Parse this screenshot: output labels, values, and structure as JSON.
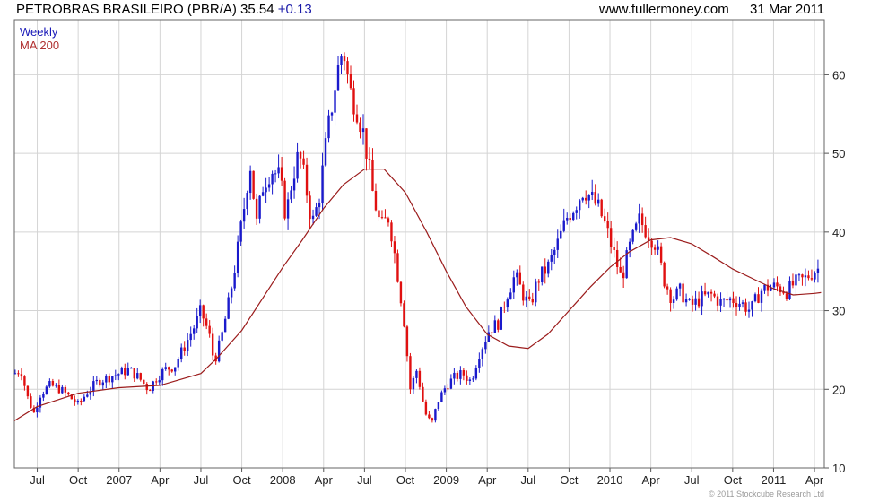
{
  "header": {
    "title_main": "PETROBRAS BRASILEIRO (PBR/A) 35.54",
    "title_change": "+0.13",
    "site": "www.fullermoney.com",
    "date": "31 Mar 2011"
  },
  "legend": {
    "weekly": "Weekly",
    "ma": "MA 200"
  },
  "copyright": "© 2011 Stockcube Research Ltd",
  "colors": {
    "up": "#1a1acc",
    "down": "#e01010",
    "ma": "#9b1c1c",
    "grid": "#d4d4d4"
  },
  "chart_data": {
    "type": "candlestick",
    "x_axis": {
      "range": [
        2006.36,
        2011.31
      ],
      "ticks": [
        {
          "label": "Jul",
          "x": 2006.5
        },
        {
          "label": "Oct",
          "x": 2006.75
        },
        {
          "label": "2007",
          "x": 2007.0
        },
        {
          "label": "Apr",
          "x": 2007.25
        },
        {
          "label": "Jul",
          "x": 2007.5
        },
        {
          "label": "Oct",
          "x": 2007.75
        },
        {
          "label": "2008",
          "x": 2008.0
        },
        {
          "label": "Apr",
          "x": 2008.25
        },
        {
          "label": "Jul",
          "x": 2008.5
        },
        {
          "label": "Oct",
          "x": 2008.75
        },
        {
          "label": "2009",
          "x": 2009.0
        },
        {
          "label": "Apr",
          "x": 2009.25
        },
        {
          "label": "Jul",
          "x": 2009.5
        },
        {
          "label": "Oct",
          "x": 2009.75
        },
        {
          "label": "2010",
          "x": 2010.0
        },
        {
          "label": "Apr",
          "x": 2010.25
        },
        {
          "label": "Jul",
          "x": 2010.5
        },
        {
          "label": "Oct",
          "x": 2010.75
        },
        {
          "label": "2011",
          "x": 2011.0
        },
        {
          "label": "Apr",
          "x": 2011.25
        }
      ]
    },
    "y_axis": {
      "range": [
        10,
        67
      ],
      "ticks": [
        10,
        20,
        30,
        40,
        50,
        60
      ],
      "side": "right"
    },
    "grid": true,
    "price_anchors": [
      [
        2006.36,
        22.0
      ],
      [
        2006.4,
        22.5
      ],
      [
        2006.44,
        19.0
      ],
      [
        2006.48,
        17.0
      ],
      [
        2006.52,
        19.5
      ],
      [
        2006.58,
        20.5
      ],
      [
        2006.64,
        20.0
      ],
      [
        2006.7,
        19.0
      ],
      [
        2006.75,
        18.0
      ],
      [
        2006.8,
        19.5
      ],
      [
        2006.87,
        21.0
      ],
      [
        2006.93,
        21.5
      ],
      [
        2007.0,
        22.0
      ],
      [
        2007.06,
        22.5
      ],
      [
        2007.12,
        21.5
      ],
      [
        2007.18,
        20.0
      ],
      [
        2007.23,
        21.5
      ],
      [
        2007.28,
        22.5
      ],
      [
        2007.34,
        23.0
      ],
      [
        2007.4,
        25.5
      ],
      [
        2007.46,
        28.0
      ],
      [
        2007.5,
        30.0
      ],
      [
        2007.55,
        27.0
      ],
      [
        2007.58,
        23.5
      ],
      [
        2007.62,
        26.0
      ],
      [
        2007.67,
        31.0
      ],
      [
        2007.72,
        37.0
      ],
      [
        2007.77,
        44.0
      ],
      [
        2007.8,
        49.0
      ],
      [
        2007.84,
        41.0
      ],
      [
        2007.88,
        46.0
      ],
      [
        2007.93,
        48.0
      ],
      [
        2007.98,
        47.0
      ],
      [
        2008.02,
        42.0
      ],
      [
        2008.06,
        47.0
      ],
      [
        2008.1,
        50.0
      ],
      [
        2008.14,
        46.0
      ],
      [
        2008.18,
        41.0
      ],
      [
        2008.22,
        44.0
      ],
      [
        2008.27,
        52.0
      ],
      [
        2008.33,
        60.0
      ],
      [
        2008.37,
        63.5
      ],
      [
        2008.41,
        58.0
      ],
      [
        2008.45,
        56.0
      ],
      [
        2008.5,
        52.0
      ],
      [
        2008.55,
        45.0
      ],
      [
        2008.6,
        40.5
      ],
      [
        2008.65,
        42.0
      ],
      [
        2008.7,
        35.0
      ],
      [
        2008.74,
        29.0
      ],
      [
        2008.78,
        20.0
      ],
      [
        2008.82,
        22.5
      ],
      [
        2008.87,
        17.0
      ],
      [
        2008.91,
        15.5
      ],
      [
        2008.95,
        18.5
      ],
      [
        2009.0,
        20.5
      ],
      [
        2009.05,
        21.5
      ],
      [
        2009.1,
        22.0
      ],
      [
        2009.15,
        21.0
      ],
      [
        2009.2,
        24.5
      ],
      [
        2009.26,
        27.5
      ],
      [
        2009.32,
        28.5
      ],
      [
        2009.37,
        32.0
      ],
      [
        2009.42,
        34.5
      ],
      [
        2009.47,
        32.0
      ],
      [
        2009.51,
        30.5
      ],
      [
        2009.56,
        34.0
      ],
      [
        2009.62,
        35.5
      ],
      [
        2009.68,
        38.5
      ],
      [
        2009.74,
        42.0
      ],
      [
        2009.79,
        43.5
      ],
      [
        2009.84,
        45.5
      ],
      [
        2009.88,
        44.5
      ],
      [
        2009.93,
        43.0
      ],
      [
        2009.97,
        41.0
      ],
      [
        2010.02,
        37.5
      ],
      [
        2010.07,
        34.0
      ],
      [
        2010.12,
        38.0
      ],
      [
        2010.18,
        41.5
      ],
      [
        2010.23,
        40.0
      ],
      [
        2010.28,
        38.5
      ],
      [
        2010.33,
        34.0
      ],
      [
        2010.38,
        31.5
      ],
      [
        2010.43,
        32.5
      ],
      [
        2010.49,
        30.5
      ],
      [
        2010.55,
        31.5
      ],
      [
        2010.62,
        32.0
      ],
      [
        2010.68,
        31.0
      ],
      [
        2010.74,
        31.5
      ],
      [
        2010.8,
        31.0
      ],
      [
        2010.86,
        30.0
      ],
      [
        2010.92,
        32.5
      ],
      [
        2010.97,
        33.0
      ],
      [
        2011.03,
        33.0
      ],
      [
        2011.08,
        32.5
      ],
      [
        2011.13,
        33.5
      ],
      [
        2011.19,
        34.0
      ],
      [
        2011.24,
        35.0
      ],
      [
        2011.29,
        35.5
      ]
    ],
    "ma200": [
      [
        2006.36,
        16.0
      ],
      [
        2006.5,
        17.8
      ],
      [
        2006.75,
        19.5
      ],
      [
        2007.0,
        20.2
      ],
      [
        2007.25,
        20.5
      ],
      [
        2007.5,
        22.0
      ],
      [
        2007.6,
        24.0
      ],
      [
        2007.75,
        27.5
      ],
      [
        2008.0,
        35.5
      ],
      [
        2008.12,
        39.0
      ],
      [
        2008.25,
        43.0
      ],
      [
        2008.37,
        46.0
      ],
      [
        2008.5,
        48.0
      ],
      [
        2008.62,
        48.0
      ],
      [
        2008.75,
        45.0
      ],
      [
        2008.88,
        40.0
      ],
      [
        2009.0,
        35.0
      ],
      [
        2009.12,
        30.5
      ],
      [
        2009.25,
        27.0
      ],
      [
        2009.38,
        25.5
      ],
      [
        2009.5,
        25.2
      ],
      [
        2009.62,
        27.0
      ],
      [
        2009.75,
        30.0
      ],
      [
        2009.88,
        33.0
      ],
      [
        2010.0,
        35.5
      ],
      [
        2010.12,
        37.5
      ],
      [
        2010.25,
        39.0
      ],
      [
        2010.37,
        39.3
      ],
      [
        2010.5,
        38.5
      ],
      [
        2010.62,
        37.0
      ],
      [
        2010.75,
        35.3
      ],
      [
        2010.88,
        34.0
      ],
      [
        2011.0,
        32.8
      ],
      [
        2011.12,
        32.0
      ],
      [
        2011.25,
        32.2
      ],
      [
        2011.29,
        32.3
      ]
    ],
    "last_close": 35.54,
    "change": 0.13
  }
}
